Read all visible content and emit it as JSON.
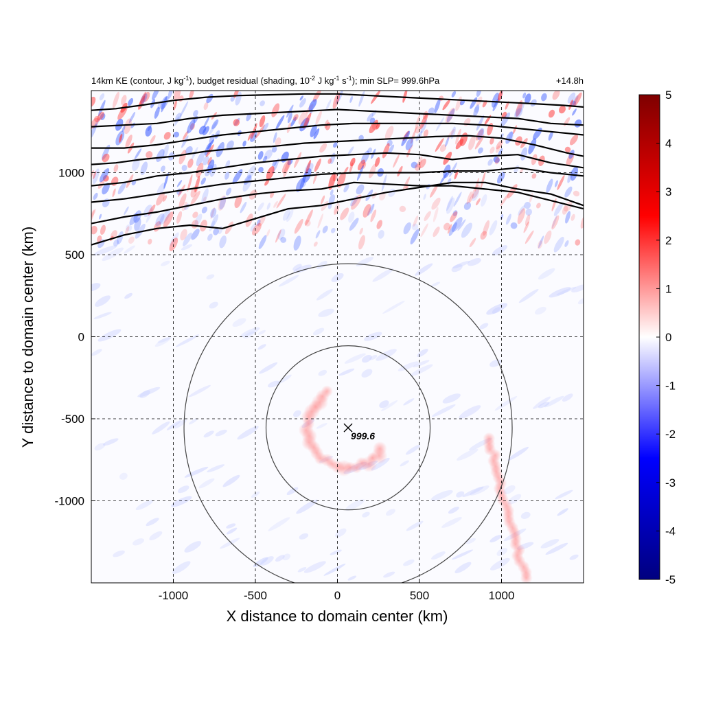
{
  "chart_data": {
    "type": "heatmap",
    "title": {
      "parts": [
        {
          "t": "14km KE (contour, J kg"
        },
        {
          "t": "-1",
          "sup": true
        },
        {
          "t": "), budget residual (shading, 10"
        },
        {
          "t": "-2",
          "sup": true
        },
        {
          "t": " J kg"
        },
        {
          "t": "-1",
          "sup": true
        },
        {
          "t": " s"
        },
        {
          "t": "-1",
          "sup": true
        },
        {
          "t": "); min SLP= 999.6hPa"
        }
      ]
    },
    "time_label": "+14.8h",
    "xlabel": "X distance to domain center (km)",
    "ylabel": "Y distance to domain center (km)",
    "xlim": [
      -1500,
      1500
    ],
    "ylim": [
      -1500,
      1500
    ],
    "x_ticks": [
      -1000,
      -500,
      0,
      500,
      1000
    ],
    "x_tick_labels": [
      "-1000",
      "-500",
      "0",
      "500",
      "1000"
    ],
    "y_ticks": [
      -1000,
      -500,
      0,
      500,
      1000
    ],
    "y_tick_labels": [
      "-1000",
      "-500",
      "0",
      "500",
      "1000"
    ],
    "grid": true,
    "colorbar": {
      "min": -5,
      "max": 5,
      "ticks": [
        5,
        4,
        3,
        2,
        1,
        0,
        -1,
        -2,
        -3,
        -4,
        -5
      ],
      "tick_labels": [
        "5",
        "4",
        "3",
        "2",
        "1",
        "0",
        "-1",
        "-2",
        "-3",
        "-4",
        "-5"
      ],
      "colors": [
        "#00007f",
        "#0000ff",
        "#ffffff",
        "#ff0000",
        "#7f0000"
      ]
    },
    "storm_center": {
      "x": 65,
      "y": -555,
      "label": "999.6"
    },
    "range_circles_km": [
      500,
      1000
    ],
    "ke_contours": [
      {
        "x": [
          -1500,
          -1350,
          -1200,
          -1000,
          -800,
          -600,
          -400,
          -200,
          0,
          200,
          400,
          600,
          800,
          1000,
          1200,
          1380,
          1500
        ],
        "y": [
          1380,
          1390,
          1410,
          1440,
          1460,
          1470,
          1475,
          1480,
          1480,
          1470,
          1460,
          1450,
          1440,
          1430,
          1420,
          1410,
          1400
        ]
      },
      {
        "x": [
          -1500,
          -1300,
          -1100,
          -900,
          -700,
          -500,
          -300,
          -100,
          0,
          100,
          300,
          500,
          700,
          900,
          1100,
          1300,
          1500
        ],
        "y": [
          1280,
          1290,
          1300,
          1330,
          1350,
          1360,
          1370,
          1380,
          1385,
          1380,
          1370,
          1360,
          1350,
          1340,
          1330,
          1300,
          1290
        ]
      },
      {
        "x": [
          -1500,
          -1300,
          -1100,
          -900,
          -700,
          -500,
          -300,
          -100,
          100,
          300,
          500,
          700,
          900,
          1100,
          1300,
          1500
        ],
        "y": [
          1150,
          1150,
          1170,
          1200,
          1230,
          1250,
          1270,
          1290,
          1300,
          1300,
          1300,
          1300,
          1290,
          1270,
          1250,
          1230
        ]
      },
      {
        "x": [
          -1500,
          -1350,
          -1200,
          -1000,
          -800,
          -600,
          -400,
          -200,
          0,
          200,
          400,
          600,
          800,
          1000,
          1200,
          1400,
          1500
        ],
        "y": [
          1050,
          1060,
          1080,
          1100,
          1130,
          1150,
          1160,
          1180,
          1190,
          1200,
          1210,
          1220,
          1225,
          1210,
          1170,
          1120,
          1100
        ]
      },
      {
        "x": [
          -1500,
          -1300,
          -1100,
          -900,
          -700,
          -500,
          -300,
          -100,
          100,
          300,
          500,
          700,
          900,
          1100,
          1300,
          1500
        ],
        "y": [
          920,
          940,
          980,
          1000,
          1030,
          1060,
          1080,
          1100,
          1110,
          1120,
          1110,
          1080,
          1100,
          1110,
          1060,
          1030
        ]
      },
      {
        "x": [
          -1500,
          -1300,
          -1100,
          -900,
          -700,
          -500,
          -300,
          -100,
          100,
          300,
          500,
          700,
          900,
          1100,
          1300,
          1500
        ],
        "y": [
          820,
          840,
          870,
          900,
          930,
          950,
          970,
          990,
          1000,
          1000,
          1000,
          1010,
          1010,
          1030,
          1000,
          980
        ]
      },
      {
        "x": [
          -1500,
          -1300,
          -1100,
          -900,
          -700,
          -500,
          -300,
          -100,
          0,
          100,
          300,
          500,
          700,
          900,
          1100,
          1300,
          1500
        ],
        "y": [
          690,
          730,
          760,
          800,
          840,
          870,
          890,
          900,
          920,
          940,
          930,
          920,
          920,
          900,
          880,
          830,
          780
        ]
      },
      {
        "x": [
          -1500,
          -1300,
          -1100,
          -900,
          -700,
          -500,
          -300,
          -100,
          100,
          300,
          500,
          700,
          900,
          1100,
          1300,
          1500
        ],
        "y": [
          560,
          620,
          660,
          680,
          660,
          720,
          780,
          800,
          840,
          880,
          910,
          940,
          940,
          900,
          870,
          800
        ]
      }
    ]
  }
}
